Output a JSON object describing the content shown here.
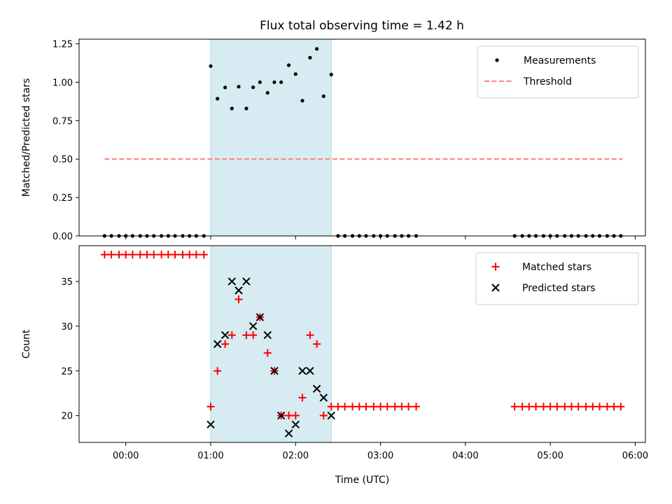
{
  "title": "Flux total observing time = 1.42 h",
  "colors": {
    "measurement": "#000000",
    "threshold": "#ff7f7f",
    "matched": "#ff0000",
    "predicted": "#000000",
    "span": "#add8e6"
  },
  "chart_data": [
    {
      "type": "scatter",
      "ylabel": "Matched/Predicted stars",
      "xlim": [
        -0.55,
        6.12
      ],
      "ylim": [
        0,
        1.28
      ],
      "yticks": [
        0.0,
        0.25,
        0.5,
        0.75,
        1.0,
        1.25
      ],
      "ytick_labels": [
        "0.00",
        "0.25",
        "0.50",
        "0.75",
        "1.00",
        "1.25"
      ],
      "xticks": [
        0,
        1,
        2,
        3,
        4,
        5,
        6
      ],
      "legend_position": "top-right",
      "highlight_span": [
        1.0,
        2.42
      ],
      "threshold": {
        "name": "Threshold",
        "y": 0.5,
        "x_range": [
          -0.25,
          5.85
        ],
        "style": "dashed"
      },
      "series": [
        {
          "name": "Measurements",
          "marker": "dot",
          "x": [
            -0.25,
            -0.17,
            -0.08,
            0.0,
            0.08,
            0.17,
            0.25,
            0.33,
            0.42,
            0.5,
            0.58,
            0.67,
            0.75,
            0.83,
            0.92,
            1.0,
            1.08,
            1.17,
            1.25,
            1.33,
            1.42,
            1.5,
            1.58,
            1.67,
            1.75,
            1.83,
            1.92,
            2.0,
            2.08,
            2.17,
            2.25,
            2.33,
            2.42,
            2.5,
            2.58,
            2.67,
            2.75,
            2.83,
            2.92,
            3.0,
            3.08,
            3.17,
            3.25,
            3.33,
            3.42,
            4.58,
            4.67,
            4.75,
            4.83,
            4.92,
            5.0,
            5.08,
            5.17,
            5.25,
            5.33,
            5.42,
            5.5,
            5.58,
            5.67,
            5.75,
            5.83
          ],
          "y": [
            0,
            0,
            0,
            0,
            0,
            0,
            0,
            0,
            0,
            0,
            0,
            0,
            0,
            0,
            0,
            1.105,
            0.893,
            0.966,
            0.829,
            0.971,
            0.829,
            0.967,
            1.0,
            0.931,
            1.0,
            1.0,
            1.111,
            1.053,
            0.88,
            1.16,
            1.217,
            0.909,
            1.05,
            0,
            0,
            0,
            0,
            0,
            0,
            0,
            0,
            0,
            0,
            0,
            0,
            0,
            0,
            0,
            0,
            0,
            0,
            0,
            0,
            0,
            0,
            0,
            0,
            0,
            0,
            0,
            0
          ]
        }
      ]
    },
    {
      "type": "scatter",
      "xlabel": "Time (UTC)",
      "ylabel": "Count",
      "xlim": [
        -0.55,
        6.12
      ],
      "ylim": [
        17,
        39
      ],
      "yticks": [
        20,
        25,
        30,
        35
      ],
      "xticks": [
        0,
        1,
        2,
        3,
        4,
        5,
        6
      ],
      "xtick_labels": [
        "00:00",
        "01:00",
        "02:00",
        "03:00",
        "04:00",
        "05:00",
        "06:00"
      ],
      "legend_position": "top-right",
      "highlight_span": [
        1.0,
        2.42
      ],
      "series": [
        {
          "name": "Matched stars",
          "marker": "plus",
          "x": [
            -0.25,
            -0.17,
            -0.08,
            0.0,
            0.08,
            0.17,
            0.25,
            0.33,
            0.42,
            0.5,
            0.58,
            0.67,
            0.75,
            0.83,
            0.92,
            1.0,
            1.08,
            1.17,
            1.25,
            1.33,
            1.42,
            1.5,
            1.58,
            1.67,
            1.75,
            1.83,
            1.92,
            2.0,
            2.08,
            2.17,
            2.25,
            2.33,
            2.42,
            2.5,
            2.58,
            2.67,
            2.75,
            2.83,
            2.92,
            3.0,
            3.08,
            3.17,
            3.25,
            3.33,
            3.42,
            4.58,
            4.67,
            4.75,
            4.83,
            4.92,
            5.0,
            5.08,
            5.17,
            5.25,
            5.33,
            5.42,
            5.5,
            5.58,
            5.67,
            5.75,
            5.83
          ],
          "y": [
            38,
            38,
            38,
            38,
            38,
            38,
            38,
            38,
            38,
            38,
            38,
            38,
            38,
            38,
            38,
            21,
            25,
            28,
            29,
            33,
            29,
            29,
            31,
            27,
            25,
            20,
            20,
            20,
            22,
            29,
            28,
            20,
            21,
            21,
            21,
            21,
            21,
            21,
            21,
            21,
            21,
            21,
            21,
            21,
            21,
            21,
            21,
            21,
            21,
            21,
            21,
            21,
            21,
            21,
            21,
            21,
            21,
            21,
            21,
            21,
            21
          ]
        },
        {
          "name": "Predicted stars",
          "marker": "x",
          "x": [
            1.0,
            1.08,
            1.17,
            1.25,
            1.33,
            1.42,
            1.5,
            1.58,
            1.67,
            1.75,
            1.83,
            1.92,
            2.0,
            2.08,
            2.17,
            2.25,
            2.33,
            2.42
          ],
          "y": [
            19,
            28,
            29,
            35,
            34,
            35,
            30,
            31,
            29,
            25,
            20,
            18,
            19,
            25,
            25,
            23,
            22,
            20
          ]
        }
      ]
    }
  ]
}
